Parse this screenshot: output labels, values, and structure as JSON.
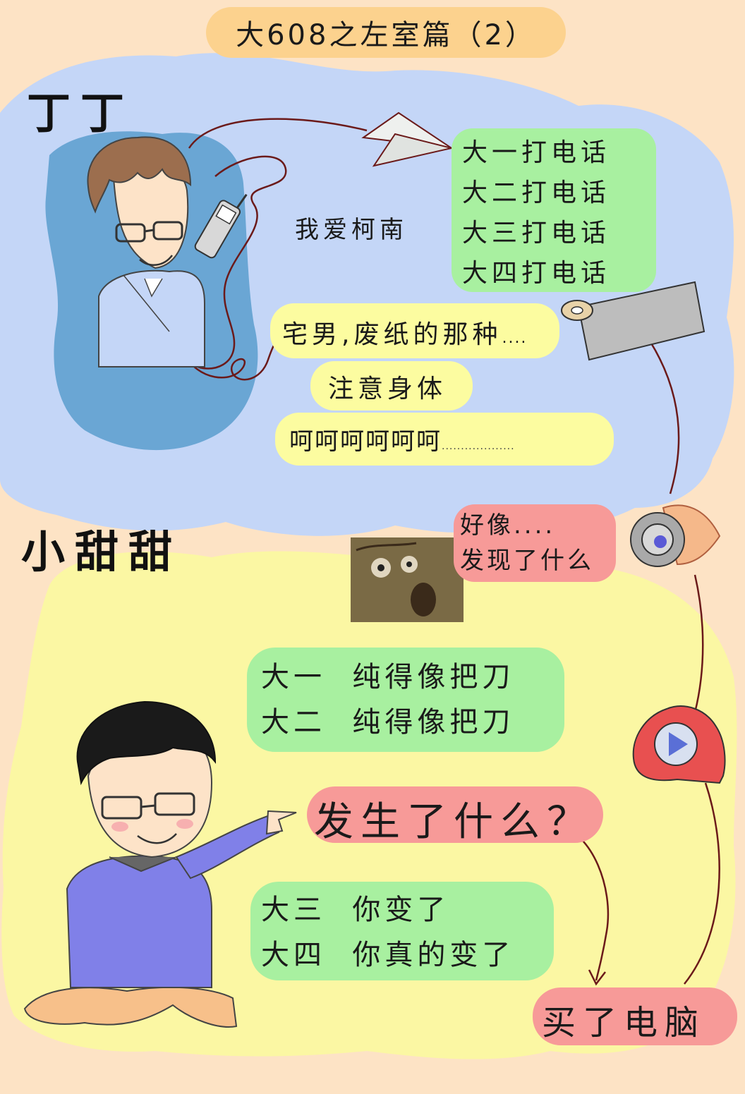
{
  "title": "大608之左室篇（2）",
  "section1": {
    "name": "丁丁",
    "left_text": "我爱柯南",
    "calls": [
      "大一打电话",
      "大二打电话",
      "大三打电话",
      "大四打电话"
    ],
    "yellow_line1": "宅男,废纸的那种",
    "yellow_line1_dots": "....",
    "yellow_line2": "注意身体",
    "yellow_line3": "呵呵呵呵呵呵",
    "yellow_line3_dots": "..................."
  },
  "section2": {
    "name": "小甜甜",
    "pink_line1": "好像....",
    "pink_line2": "发现了什么",
    "green_top": [
      "大一  纯得像把刀",
      "大二  纯得像把刀"
    ],
    "question": "发生了什么？",
    "green_bottom": [
      "大三  你变了",
      "大四  你真的变了"
    ],
    "bought": "买了电脑"
  },
  "colors": {
    "background": "#fde3c5",
    "blue_cloud": "#c4d6f7",
    "dark_blue": "#6aa6d4",
    "yellow_cloud": "#fbf7a3",
    "green_highlight": "#a8f0a0",
    "pink_highlight": "#f79a98",
    "title_pill": "#fcd28e"
  },
  "icons": {
    "airplane": "paper-airplane-icon",
    "tissue": "toilet-paper-roll-icon",
    "film": "film-roll-icon",
    "player": "video-player-icon",
    "phone": "cell-phone-icon",
    "meme": "rage-face-icon"
  }
}
